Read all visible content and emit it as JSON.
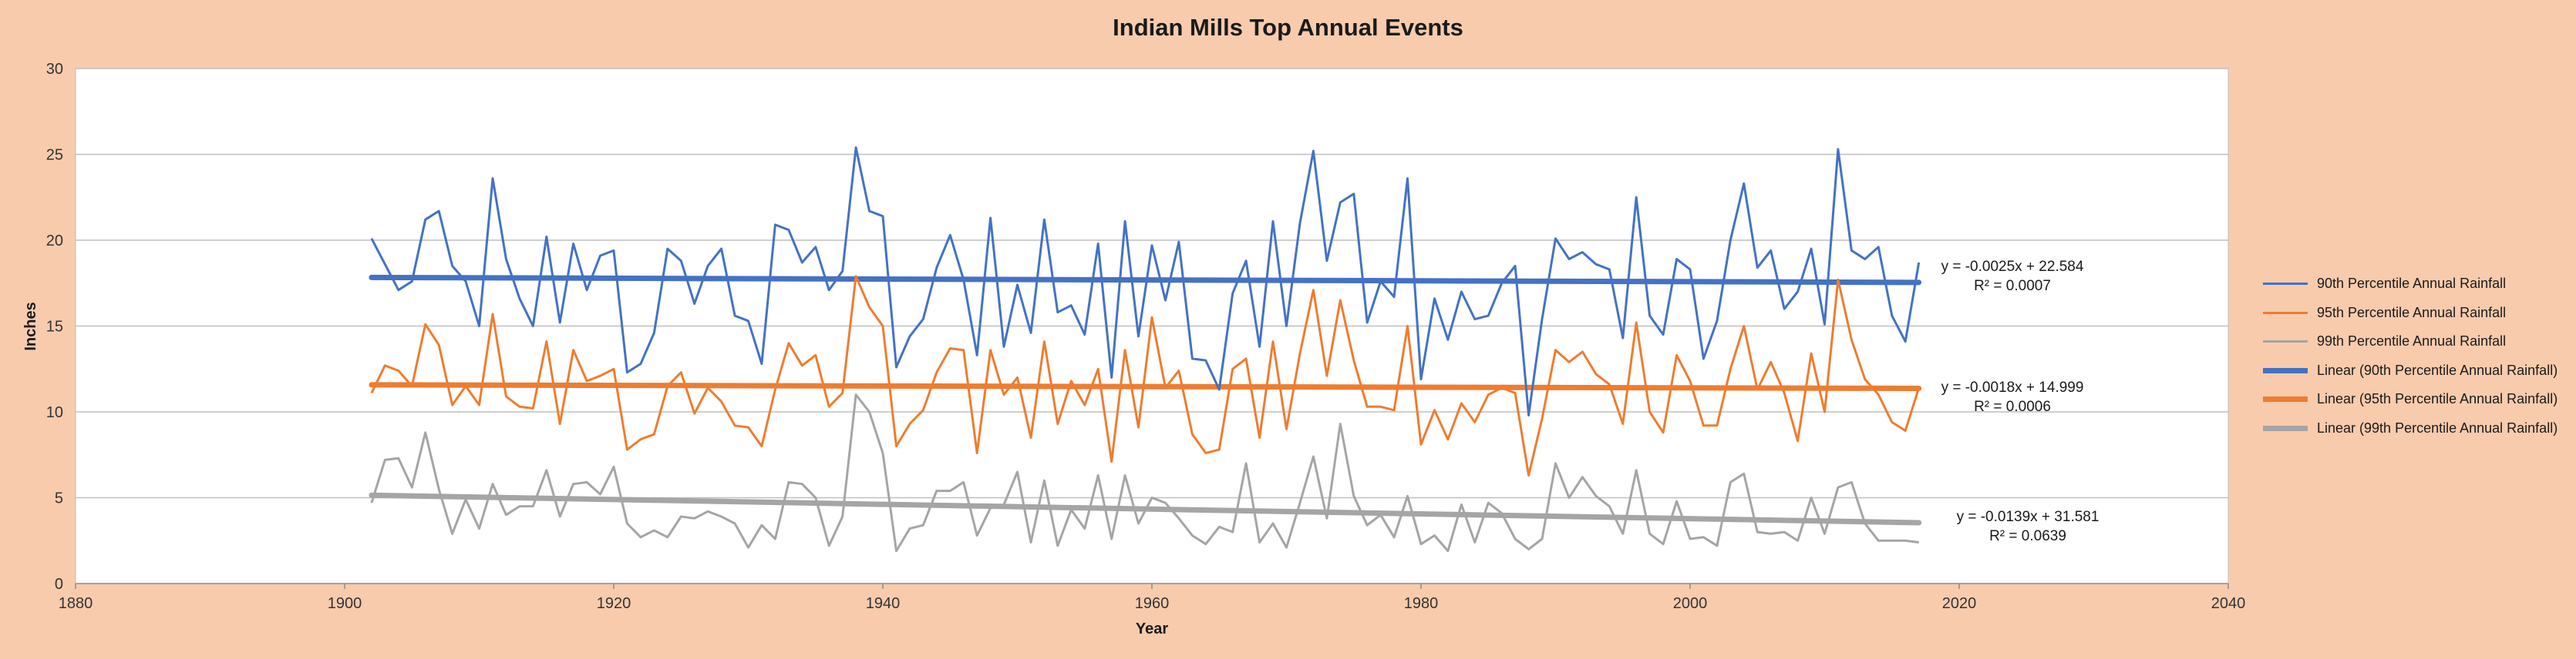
{
  "chart_data": {
    "type": "line",
    "title": "Indian Mills Top Annual Events",
    "xlabel": "Year",
    "ylabel": "Inches",
    "xlim": [
      1880,
      2040
    ],
    "ylim": [
      0,
      30
    ],
    "x_ticks": [
      1880,
      1900,
      1920,
      1940,
      1960,
      1980,
      2000,
      2020,
      2040
    ],
    "y_ticks": [
      0,
      5,
      10,
      15,
      20,
      25,
      30
    ],
    "grid": true,
    "legend_position": "right",
    "x": [
      1902,
      1903,
      1904,
      1905,
      1906,
      1907,
      1908,
      1909,
      1910,
      1911,
      1912,
      1913,
      1914,
      1915,
      1916,
      1917,
      1918,
      1919,
      1920,
      1921,
      1922,
      1923,
      1924,
      1925,
      1926,
      1927,
      1928,
      1929,
      1930,
      1931,
      1932,
      1933,
      1934,
      1935,
      1936,
      1937,
      1938,
      1939,
      1940,
      1941,
      1942,
      1943,
      1944,
      1945,
      1946,
      1947,
      1948,
      1949,
      1950,
      1951,
      1952,
      1953,
      1954,
      1955,
      1956,
      1957,
      1958,
      1959,
      1960,
      1961,
      1962,
      1963,
      1964,
      1965,
      1966,
      1967,
      1968,
      1969,
      1970,
      1971,
      1972,
      1973,
      1974,
      1975,
      1976,
      1977,
      1978,
      1979,
      1980,
      1981,
      1982,
      1983,
      1984,
      1985,
      1986,
      1987,
      1988,
      1989,
      1990,
      1991,
      1992,
      1993,
      1994,
      1995,
      1996,
      1997,
      1998,
      1999,
      2000,
      2001,
      2002,
      2003,
      2004,
      2005,
      2006,
      2007,
      2008,
      2009,
      2010,
      2011,
      2012,
      2013,
      2014,
      2015,
      2016,
      2017
    ],
    "series": [
      {
        "name": "90th Percentile Annual Rainfall",
        "color": "#4472c4",
        "values": [
          20.1,
          18.6,
          17.1,
          17.6,
          21.2,
          21.7,
          18.5,
          17.6,
          15.0,
          23.6,
          18.9,
          16.6,
          15.0,
          20.2,
          15.2,
          19.8,
          17.1,
          19.1,
          19.4,
          12.3,
          12.8,
          14.6,
          19.5,
          18.8,
          16.3,
          18.5,
          19.5,
          15.6,
          15.3,
          12.8,
          20.9,
          20.6,
          18.7,
          19.6,
          17.1,
          18.2,
          25.4,
          21.7,
          21.4,
          12.6,
          14.4,
          15.4,
          18.4,
          20.3,
          17.7,
          13.3,
          21.3,
          13.8,
          17.4,
          14.6,
          21.2,
          15.8,
          16.2,
          14.5,
          19.8,
          12.0,
          21.1,
          14.4,
          19.7,
          16.5,
          19.9,
          13.1,
          13.0,
          11.3,
          16.9,
          18.8,
          13.8,
          21.1,
          15.0,
          21.0,
          25.2,
          18.8,
          22.2,
          22.7,
          15.2,
          17.6,
          16.7,
          23.6,
          11.9,
          16.6,
          14.2,
          17.0,
          15.4,
          15.6,
          17.5,
          18.5,
          9.8,
          15.4,
          20.1,
          18.9,
          19.3,
          18.6,
          18.3,
          14.3,
          22.5,
          15.6,
          14.5,
          18.9,
          18.3,
          13.1,
          15.3,
          20.0,
          23.3,
          18.4,
          19.4,
          16.0,
          17.0,
          19.5,
          15.1,
          25.3,
          19.4,
          18.9,
          19.6,
          15.6,
          14.1,
          18.7
        ]
      },
      {
        "name": "95th Percentile Annual Rainfall",
        "color": "#ed7d31",
        "values": [
          11.1,
          12.7,
          12.4,
          11.5,
          15.1,
          13.9,
          10.4,
          11.5,
          10.4,
          15.7,
          10.9,
          10.3,
          10.2,
          14.1,
          9.3,
          13.6,
          11.8,
          12.1,
          12.5,
          7.8,
          8.4,
          8.7,
          11.5,
          12.3,
          9.9,
          11.4,
          10.6,
          9.2,
          9.1,
          8.0,
          11.3,
          14.0,
          12.7,
          13.3,
          10.3,
          11.1,
          17.9,
          16.1,
          15.0,
          8.0,
          9.3,
          10.1,
          12.3,
          13.7,
          13.6,
          7.6,
          13.6,
          11.0,
          12.0,
          8.5,
          14.1,
          9.3,
          11.8,
          10.4,
          12.5,
          7.1,
          13.6,
          9.1,
          15.5,
          11.4,
          12.4,
          8.7,
          7.6,
          7.8,
          12.5,
          13.1,
          8.5,
          14.1,
          9.0,
          13.4,
          17.1,
          12.1,
          16.5,
          13.0,
          10.3,
          10.3,
          10.1,
          15.0,
          8.1,
          10.1,
          8.4,
          10.5,
          9.4,
          11.0,
          11.4,
          11.1,
          6.3,
          9.6,
          13.6,
          12.9,
          13.5,
          12.2,
          11.6,
          9.3,
          15.2,
          10.0,
          8.8,
          13.3,
          11.8,
          9.2,
          9.2,
          12.5,
          15.0,
          11.3,
          12.9,
          11.1,
          8.3,
          13.4,
          10.0,
          17.7,
          14.2,
          11.9,
          11.0,
          9.4,
          8.9,
          11.4
        ]
      },
      {
        "name": "99th Percentile Annual Rainfall",
        "color": "#a5a5a5",
        "values": [
          4.7,
          7.2,
          7.3,
          5.6,
          8.8,
          5.5,
          2.9,
          4.9,
          3.2,
          5.8,
          4.0,
          4.5,
          4.5,
          6.6,
          3.9,
          5.8,
          5.9,
          5.2,
          6.8,
          3.5,
          2.7,
          3.1,
          2.7,
          3.9,
          3.8,
          4.2,
          3.9,
          3.5,
          2.1,
          3.4,
          2.6,
          5.9,
          5.8,
          5.0,
          2.2,
          3.9,
          11.0,
          10.0,
          7.6,
          1.9,
          3.2,
          3.4,
          5.4,
          5.4,
          5.9,
          2.8,
          4.4,
          4.6,
          6.5,
          2.4,
          6.0,
          2.2,
          4.3,
          3.2,
          6.3,
          2.6,
          6.3,
          3.5,
          5.0,
          4.7,
          3.8,
          2.8,
          2.3,
          3.3,
          3.0,
          7.0,
          2.4,
          3.5,
          2.1,
          4.7,
          7.4,
          3.8,
          9.3,
          5.1,
          3.4,
          4.0,
          2.7,
          5.1,
          2.3,
          2.8,
          1.9,
          4.6,
          2.4,
          4.7,
          4.1,
          2.6,
          2.0,
          2.6,
          7.0,
          5.0,
          6.2,
          5.1,
          4.5,
          2.9,
          6.6,
          2.9,
          2.3,
          4.8,
          2.6,
          2.7,
          2.2,
          5.9,
          6.4,
          3.0,
          2.9,
          3.0,
          2.5,
          5.0,
          2.9,
          5.6,
          5.9,
          3.5,
          2.5,
          2.5,
          2.5,
          2.4
        ]
      }
    ],
    "trendlines": [
      {
        "name": "Linear (90th Percentile Annual Rainfall)",
        "color": "#4472c4",
        "slope": -0.0025,
        "intercept": 22.584,
        "equation": "y = -0.0025x + 22.584",
        "r2": "R² = 0.0007"
      },
      {
        "name": "Linear (95th Percentile Annual Rainfall)",
        "color": "#ed7d31",
        "slope": -0.0018,
        "intercept": 14.999,
        "equation": "y = -0.0018x + 14.999",
        "r2": "R² = 0.0006"
      },
      {
        "name": "Linear (99th Percentile Annual Rainfall)",
        "color": "#a5a5a5",
        "slope": -0.0139,
        "intercept": 31.581,
        "equation": "y = -0.0139x + 31.581",
        "r2": "R² = 0.0639"
      }
    ]
  }
}
